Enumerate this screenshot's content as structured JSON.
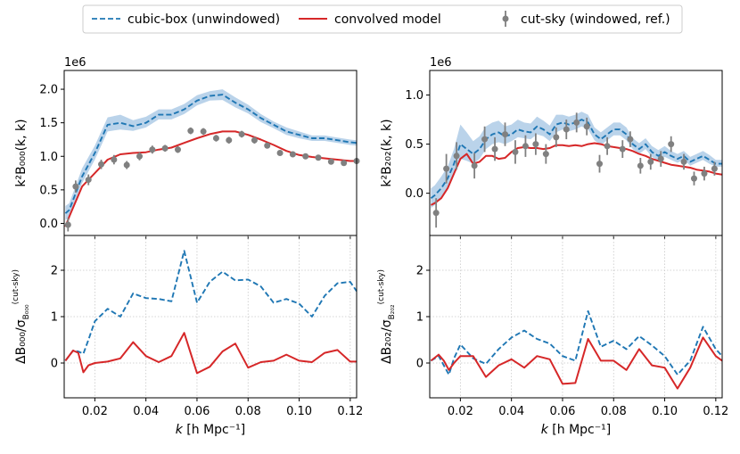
{
  "legend": {
    "placement": "top-center",
    "entries": [
      {
        "label": "cubic-box (unwindowed)",
        "color": "#1f77b4",
        "style": "dashed"
      },
      {
        "label": "convolved model",
        "color": "#d62728",
        "style": "solid"
      },
      {
        "label": "cut-sky (windowed, ref.)",
        "color": "#808080",
        "style": "errorbar"
      }
    ]
  },
  "shared_x": {
    "label_main": "k",
    "label_unit": "[h Mpc⁻¹]",
    "ticks": [
      0.02,
      0.04,
      0.06,
      0.08,
      0.1,
      0.12
    ],
    "tick_labels": [
      "0.02",
      "0.04",
      "0.06",
      "0.08",
      "0.10",
      "0.12"
    ],
    "xlim": [
      0.008,
      0.1225
    ]
  },
  "chart_data": [
    {
      "id": "top_left",
      "type": "line",
      "ylabel": "k²B₀₀₀(k, k)",
      "offset_text": "1e6",
      "ylim": [
        -0.18,
        2.28
      ],
      "yticks": [
        0.0,
        0.5,
        1.0,
        1.5,
        2.0
      ],
      "ytick_labels": [
        "0.0",
        "0.5",
        "1.0",
        "1.5",
        "2.0"
      ],
      "grid": false,
      "x": [
        0.0085,
        0.01,
        0.015,
        0.02,
        0.025,
        0.03,
        0.035,
        0.04,
        0.045,
        0.05,
        0.055,
        0.06,
        0.065,
        0.07,
        0.075,
        0.08,
        0.085,
        0.09,
        0.095,
        0.1,
        0.105,
        0.11,
        0.115,
        0.12,
        0.1225
      ],
      "series": [
        {
          "name": "cubic-box (unwindowed)",
          "values": [
            0.15,
            0.2,
            0.7,
            1.05,
            1.47,
            1.5,
            1.45,
            1.5,
            1.62,
            1.62,
            1.7,
            1.83,
            1.9,
            1.92,
            1.8,
            1.7,
            1.57,
            1.47,
            1.37,
            1.32,
            1.27,
            1.27,
            1.24,
            1.21,
            1.2
          ],
          "band_lower": [
            0.05,
            0.1,
            0.6,
            0.95,
            1.37,
            1.4,
            1.38,
            1.43,
            1.55,
            1.55,
            1.63,
            1.76,
            1.83,
            1.84,
            1.73,
            1.64,
            1.51,
            1.42,
            1.32,
            1.27,
            1.23,
            1.23,
            1.2,
            1.17,
            1.16
          ],
          "band_upper": [
            0.26,
            0.3,
            0.82,
            1.16,
            1.58,
            1.62,
            1.54,
            1.59,
            1.7,
            1.7,
            1.78,
            1.91,
            1.97,
            2.0,
            1.88,
            1.77,
            1.63,
            1.52,
            1.43,
            1.37,
            1.31,
            1.31,
            1.28,
            1.25,
            1.24
          ]
        },
        {
          "name": "convolved model",
          "values": [
            -0.05,
            0.1,
            0.55,
            0.75,
            0.95,
            1.03,
            1.05,
            1.06,
            1.1,
            1.13,
            1.2,
            1.27,
            1.33,
            1.37,
            1.37,
            1.32,
            1.25,
            1.17,
            1.08,
            1.02,
            0.99,
            0.97,
            0.95,
            0.93,
            0.93
          ]
        },
        {
          "name": "cut-sky (windowed, ref.)",
          "type": "errorbar",
          "x": [
            0.0095,
            0.0125,
            0.0175,
            0.0225,
            0.0275,
            0.0325,
            0.0375,
            0.0425,
            0.0475,
            0.0525,
            0.0575,
            0.0625,
            0.0675,
            0.0725,
            0.0775,
            0.0825,
            0.0875,
            0.0925,
            0.0975,
            0.1025,
            0.1075,
            0.1125,
            0.1175,
            0.1225
          ],
          "values": [
            -0.02,
            0.55,
            0.65,
            0.88,
            0.95,
            0.87,
            1.0,
            1.1,
            1.12,
            1.1,
            1.38,
            1.37,
            1.27,
            1.24,
            1.33,
            1.24,
            1.16,
            1.05,
            1.03,
            1.0,
            0.98,
            0.92,
            0.9,
            0.93
          ],
          "errors": [
            0.1,
            0.09,
            0.08,
            0.07,
            0.07,
            0.06,
            0.06,
            0.06,
            0.05,
            0.05,
            0.05,
            0.05,
            0.05,
            0.05,
            0.05,
            0.05,
            0.04,
            0.04,
            0.04,
            0.04,
            0.04,
            0.04,
            0.04,
            0.04
          ]
        }
      ]
    },
    {
      "id": "top_right",
      "type": "line",
      "ylabel": "k²B₂₀₂(k, k)",
      "offset_text": "1e6",
      "ylim": [
        -0.43,
        1.25
      ],
      "yticks": [
        0.0,
        0.5,
        1.0
      ],
      "ytick_labels": [
        "0.0",
        "0.5",
        "1.0"
      ],
      "grid": false,
      "x": [
        0.0085,
        0.01,
        0.0125,
        0.015,
        0.0175,
        0.02,
        0.0225,
        0.025,
        0.0275,
        0.03,
        0.0325,
        0.035,
        0.0375,
        0.04,
        0.0425,
        0.045,
        0.0475,
        0.05,
        0.0525,
        0.055,
        0.0575,
        0.06,
        0.0625,
        0.065,
        0.0675,
        0.07,
        0.0725,
        0.075,
        0.0775,
        0.08,
        0.0825,
        0.085,
        0.0875,
        0.09,
        0.0925,
        0.095,
        0.0975,
        0.1,
        0.1025,
        0.105,
        0.1075,
        0.11,
        0.1125,
        0.115,
        0.1175,
        0.12,
        0.1225
      ],
      "series": [
        {
          "name": "cubic-box (unwindowed)",
          "values": [
            -0.05,
            -0.02,
            0.05,
            0.15,
            0.3,
            0.5,
            0.45,
            0.4,
            0.45,
            0.55,
            0.6,
            0.62,
            0.58,
            0.6,
            0.65,
            0.63,
            0.62,
            0.68,
            0.65,
            0.6,
            0.7,
            0.72,
            0.7,
            0.72,
            0.75,
            0.72,
            0.6,
            0.55,
            0.6,
            0.65,
            0.65,
            0.6,
            0.5,
            0.45,
            0.5,
            0.42,
            0.38,
            0.42,
            0.38,
            0.35,
            0.38,
            0.32,
            0.35,
            0.38,
            0.34,
            0.3,
            0.3
          ],
          "band_lower": [
            -0.15,
            -0.12,
            -0.05,
            0.05,
            0.18,
            0.35,
            0.33,
            0.3,
            0.35,
            0.45,
            0.5,
            0.52,
            0.5,
            0.53,
            0.57,
            0.56,
            0.55,
            0.6,
            0.58,
            0.53,
            0.62,
            0.65,
            0.63,
            0.65,
            0.68,
            0.65,
            0.54,
            0.49,
            0.54,
            0.59,
            0.59,
            0.54,
            0.45,
            0.4,
            0.45,
            0.37,
            0.33,
            0.37,
            0.34,
            0.31,
            0.34,
            0.28,
            0.31,
            0.34,
            0.3,
            0.27,
            0.27
          ],
          "band_upper": [
            0.05,
            0.08,
            0.17,
            0.27,
            0.45,
            0.7,
            0.62,
            0.53,
            0.58,
            0.68,
            0.72,
            0.74,
            0.68,
            0.7,
            0.75,
            0.72,
            0.71,
            0.78,
            0.74,
            0.69,
            0.8,
            0.8,
            0.78,
            0.8,
            0.83,
            0.8,
            0.67,
            0.62,
            0.67,
            0.72,
            0.72,
            0.67,
            0.56,
            0.51,
            0.56,
            0.48,
            0.44,
            0.48,
            0.43,
            0.4,
            0.43,
            0.37,
            0.4,
            0.43,
            0.39,
            0.34,
            0.34
          ]
        },
        {
          "name": "convolved model",
          "values": [
            -0.12,
            -0.1,
            -0.05,
            0.05,
            0.2,
            0.35,
            0.4,
            0.3,
            0.32,
            0.38,
            0.38,
            0.35,
            0.36,
            0.42,
            0.46,
            0.47,
            0.46,
            0.46,
            0.45,
            0.46,
            0.49,
            0.49,
            0.48,
            0.49,
            0.48,
            0.5,
            0.51,
            0.5,
            0.48,
            0.47,
            0.46,
            0.45,
            0.43,
            0.4,
            0.38,
            0.35,
            0.33,
            0.31,
            0.29,
            0.28,
            0.27,
            0.26,
            0.24,
            0.23,
            0.22,
            0.2,
            0.19
          ]
        },
        {
          "name": "cut-sky (windowed, ref.)",
          "type": "errorbar",
          "x": [
            0.0105,
            0.0145,
            0.0185,
            0.0255,
            0.0295,
            0.0335,
            0.0375,
            0.0415,
            0.0455,
            0.0495,
            0.0535,
            0.0575,
            0.0615,
            0.0655,
            0.0695,
            0.0745,
            0.0775,
            0.0835,
            0.0865,
            0.0905,
            0.0945,
            0.0985,
            0.1025,
            0.1075,
            0.1115,
            0.1155,
            0.1195
          ],
          "values": [
            -0.2,
            0.25,
            0.38,
            0.28,
            0.55,
            0.45,
            0.6,
            0.42,
            0.48,
            0.5,
            0.4,
            0.57,
            0.65,
            0.72,
            0.68,
            0.3,
            0.48,
            0.45,
            0.55,
            0.28,
            0.32,
            0.35,
            0.5,
            0.32,
            0.15,
            0.2,
            0.25
          ],
          "errors": [
            0.15,
            0.15,
            0.14,
            0.13,
            0.13,
            0.12,
            0.12,
            0.12,
            0.11,
            0.11,
            0.1,
            0.1,
            0.1,
            0.1,
            0.09,
            0.09,
            0.09,
            0.09,
            0.08,
            0.08,
            0.08,
            0.08,
            0.08,
            0.08,
            0.07,
            0.07,
            0.07
          ]
        }
      ]
    },
    {
      "id": "bottom_left",
      "type": "line",
      "ylabel_main": "ΔB₀₀₀/σ",
      "ylabel_sub": "B₀₀₀",
      "ylabel_sup": "(cut-sky)",
      "ylim": [
        -0.75,
        2.75
      ],
      "yticks": [
        0,
        1,
        2
      ],
      "ytick_labels": [
        "0",
        "1",
        "2"
      ],
      "grid": true,
      "x": [
        0.0085,
        0.0115,
        0.0135,
        0.0155,
        0.0175,
        0.02,
        0.025,
        0.03,
        0.035,
        0.04,
        0.045,
        0.05,
        0.055,
        0.06,
        0.065,
        0.07,
        0.075,
        0.08,
        0.085,
        0.09,
        0.095,
        0.1,
        0.105,
        0.11,
        0.115,
        0.12,
        0.1225
      ],
      "series": [
        {
          "name": "cubic-box (unwindowed)",
          "values": [
            0.05,
            0.27,
            0.25,
            0.2,
            0.5,
            0.9,
            1.17,
            1.0,
            1.5,
            1.4,
            1.38,
            1.33,
            2.42,
            1.3,
            1.75,
            1.97,
            1.78,
            1.8,
            1.65,
            1.3,
            1.38,
            1.28,
            1.0,
            1.45,
            1.72,
            1.75,
            1.55
          ]
        },
        {
          "name": "convolved model",
          "values": [
            0.05,
            0.27,
            0.22,
            -0.2,
            -0.05,
            0.0,
            0.03,
            0.1,
            0.45,
            0.15,
            0.02,
            0.15,
            0.65,
            -0.22,
            -0.08,
            0.25,
            0.42,
            -0.1,
            0.02,
            0.05,
            0.18,
            0.05,
            0.02,
            0.22,
            0.28,
            0.03,
            0.03
          ]
        }
      ]
    },
    {
      "id": "bottom_right",
      "type": "line",
      "ylabel_main": "ΔB₂₀₂/σ",
      "ylabel_sub": "B₂₀₂",
      "ylabel_sup": "(cut-sky)",
      "ylim": [
        -0.75,
        2.75
      ],
      "yticks": [
        0,
        1,
        2
      ],
      "ytick_labels": [
        "0",
        "1",
        "2"
      ],
      "grid": true,
      "x": [
        0.0085,
        0.0115,
        0.0135,
        0.0155,
        0.0175,
        0.02,
        0.025,
        0.03,
        0.035,
        0.04,
        0.045,
        0.05,
        0.055,
        0.06,
        0.065,
        0.07,
        0.075,
        0.08,
        0.085,
        0.09,
        0.095,
        0.1,
        0.105,
        0.11,
        0.115,
        0.12,
        0.1225
      ],
      "series": [
        {
          "name": "cubic-box (unwindowed)",
          "values": [
            0.05,
            0.15,
            -0.05,
            -0.25,
            0.1,
            0.4,
            0.1,
            -0.02,
            0.3,
            0.55,
            0.7,
            0.52,
            0.42,
            0.15,
            0.05,
            1.12,
            0.35,
            0.48,
            0.3,
            0.58,
            0.38,
            0.15,
            -0.25,
            0.05,
            0.78,
            0.3,
            0.15
          ]
        },
        {
          "name": "convolved model",
          "values": [
            0.05,
            0.18,
            0.05,
            -0.15,
            0.0,
            0.15,
            0.15,
            -0.3,
            -0.05,
            0.08,
            -0.1,
            0.15,
            0.08,
            -0.45,
            -0.43,
            0.52,
            0.05,
            0.05,
            -0.15,
            0.3,
            -0.05,
            -0.1,
            -0.55,
            -0.1,
            0.55,
            0.15,
            0.05
          ]
        }
      ]
    }
  ]
}
